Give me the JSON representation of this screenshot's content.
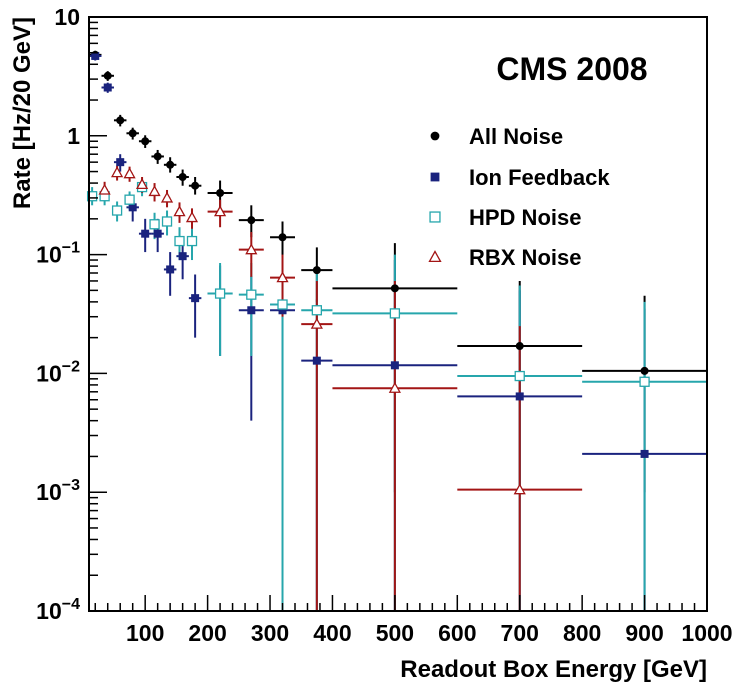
{
  "chart_data": {
    "type": "scatter",
    "title": "CMS 2008",
    "xlabel": "Readout Box Energy [GeV]",
    "ylabel": "Rate [Hz/20 GeV]",
    "xlim": [
      10,
      1000
    ],
    "ylim": [
      0.0001,
      10
    ],
    "yscale": "log",
    "grid": false,
    "legend_position": "top-right",
    "x_ticks": [
      100,
      200,
      300,
      400,
      500,
      600,
      700,
      800,
      900,
      1000
    ],
    "x_tick_labels": [
      "100",
      "200",
      "300",
      "400",
      "500",
      "600",
      "700",
      "800",
      "900",
      "1000"
    ],
    "y_ticks": [
      {
        "value": 10,
        "base": "10",
        "exp": ""
      },
      {
        "value": 1,
        "base": "1",
        "exp": ""
      },
      {
        "value": 0.1,
        "base": "10",
        "exp": "−1"
      },
      {
        "value": 0.01,
        "base": "10",
        "exp": "−2"
      },
      {
        "value": 0.001,
        "base": "10",
        "exp": "−3"
      },
      {
        "value": 0.0001,
        "base": "10",
        "exp": "−4"
      }
    ],
    "series": [
      {
        "name": "All Noise",
        "marker": "circle",
        "color": "#000000",
        "points": [
          {
            "x": 20,
            "y": 4.8,
            "xlo": 10,
            "xhi": 30,
            "ylo": 4.4,
            "yhi": 5.2
          },
          {
            "x": 40,
            "y": 3.2,
            "xlo": 30,
            "xhi": 50,
            "ylo": 2.9,
            "yhi": 3.5
          },
          {
            "x": 60,
            "y": 1.35,
            "xlo": 50,
            "xhi": 70,
            "ylo": 1.2,
            "yhi": 1.5
          },
          {
            "x": 80,
            "y": 1.05,
            "xlo": 70,
            "xhi": 90,
            "ylo": 0.93,
            "yhi": 1.17
          },
          {
            "x": 100,
            "y": 0.9,
            "xlo": 90,
            "xhi": 110,
            "ylo": 0.79,
            "yhi": 1.01
          },
          {
            "x": 120,
            "y": 0.67,
            "xlo": 110,
            "xhi": 130,
            "ylo": 0.58,
            "yhi": 0.76
          },
          {
            "x": 140,
            "y": 0.57,
            "xlo": 130,
            "xhi": 150,
            "ylo": 0.49,
            "yhi": 0.66
          },
          {
            "x": 160,
            "y": 0.45,
            "xlo": 150,
            "xhi": 170,
            "ylo": 0.38,
            "yhi": 0.52
          },
          {
            "x": 180,
            "y": 0.38,
            "xlo": 170,
            "xhi": 190,
            "ylo": 0.32,
            "yhi": 0.45
          },
          {
            "x": 220,
            "y": 0.33,
            "xlo": 200,
            "xhi": 240,
            "ylo": 0.25,
            "yhi": 0.42
          },
          {
            "x": 270,
            "y": 0.195,
            "xlo": 250,
            "xhi": 290,
            "ylo": 0.14,
            "yhi": 0.26
          },
          {
            "x": 320,
            "y": 0.14,
            "xlo": 300,
            "xhi": 340,
            "ylo": 0.095,
            "yhi": 0.19
          },
          {
            "x": 375,
            "y": 0.074,
            "xlo": 350,
            "xhi": 400,
            "ylo": 0.04,
            "yhi": 0.115
          },
          {
            "x": 500,
            "y": 0.052,
            "xlo": 400,
            "xhi": 600,
            "ylo": 0.001,
            "yhi": 0.125
          },
          {
            "x": 700,
            "y": 0.017,
            "xlo": 600,
            "xhi": 800,
            "ylo": 0.001,
            "yhi": 0.06
          },
          {
            "x": 900,
            "y": 0.0105,
            "xlo": 800,
            "xhi": 1000,
            "ylo": 0.001,
            "yhi": 0.045
          }
        ]
      },
      {
        "name": "Ion Feedback",
        "marker": "square",
        "color": "#1a237e",
        "points": [
          {
            "x": 20,
            "y": 4.7,
            "xlo": 10,
            "xhi": 30,
            "ylo": 4.3,
            "yhi": 5.1
          },
          {
            "x": 40,
            "y": 2.55,
            "xlo": 30,
            "xhi": 50,
            "ylo": 2.3,
            "yhi": 2.8
          },
          {
            "x": 60,
            "y": 0.6,
            "xlo": 50,
            "xhi": 70,
            "ylo": 0.5,
            "yhi": 0.7
          },
          {
            "x": 80,
            "y": 0.25,
            "xlo": 70,
            "xhi": 90,
            "ylo": 0.19,
            "yhi": 0.31
          },
          {
            "x": 100,
            "y": 0.15,
            "xlo": 90,
            "xhi": 110,
            "ylo": 0.105,
            "yhi": 0.2
          },
          {
            "x": 120,
            "y": 0.15,
            "xlo": 110,
            "xhi": 130,
            "ylo": 0.105,
            "yhi": 0.2
          },
          {
            "x": 140,
            "y": 0.075,
            "xlo": 130,
            "xhi": 150,
            "ylo": 0.045,
            "yhi": 0.105
          },
          {
            "x": 160,
            "y": 0.097,
            "xlo": 150,
            "xhi": 170,
            "ylo": 0.062,
            "yhi": 0.13
          },
          {
            "x": 180,
            "y": 0.043,
            "xlo": 170,
            "xhi": 190,
            "ylo": 0.02,
            "yhi": 0.068
          },
          {
            "x": 220,
            "y": 0.047,
            "xlo": 200,
            "xhi": 240,
            "ylo": 0.014,
            "yhi": 0.081
          },
          {
            "x": 270,
            "y": 0.034,
            "xlo": 250,
            "xhi": 290,
            "ylo": 0.004,
            "yhi": 0.066
          },
          {
            "x": 320,
            "y": 0.034,
            "xlo": 300,
            "xhi": 340,
            "ylo": 0.004,
            "yhi": 0.066
          },
          {
            "x": 375,
            "y": 0.0128,
            "xlo": 350,
            "xhi": 400,
            "ylo": 0.0001,
            "yhi": 0.042
          },
          {
            "x": 500,
            "y": 0.0117,
            "xlo": 400,
            "xhi": 600,
            "ylo": 0.0001,
            "yhi": 0.09
          },
          {
            "x": 700,
            "y": 0.0064,
            "xlo": 600,
            "xhi": 800,
            "ylo": 0.0001,
            "yhi": 0.05
          },
          {
            "x": 900,
            "y": 0.0021,
            "xlo": 800,
            "xhi": 1000,
            "ylo": 0.0001,
            "yhi": 0.035
          }
        ]
      },
      {
        "name": "HPD Noise",
        "marker": "open-square",
        "color": "#26a6ac",
        "points": [
          {
            "x": 15,
            "y": 0.31,
            "xlo": 10,
            "xhi": 20,
            "ylo": 0.26,
            "yhi": 0.37
          },
          {
            "x": 35,
            "y": 0.31,
            "xlo": 30,
            "xhi": 40,
            "ylo": 0.26,
            "yhi": 0.37
          },
          {
            "x": 55,
            "y": 0.235,
            "xlo": 50,
            "xhi": 60,
            "ylo": 0.19,
            "yhi": 0.28
          },
          {
            "x": 75,
            "y": 0.29,
            "xlo": 70,
            "xhi": 80,
            "ylo": 0.24,
            "yhi": 0.34
          },
          {
            "x": 95,
            "y": 0.37,
            "xlo": 90,
            "xhi": 100,
            "ylo": 0.31,
            "yhi": 0.43
          },
          {
            "x": 115,
            "y": 0.18,
            "xlo": 110,
            "xhi": 120,
            "ylo": 0.135,
            "yhi": 0.225
          },
          {
            "x": 135,
            "y": 0.19,
            "xlo": 130,
            "xhi": 140,
            "ylo": 0.145,
            "yhi": 0.235
          },
          {
            "x": 155,
            "y": 0.13,
            "xlo": 150,
            "xhi": 160,
            "ylo": 0.09,
            "yhi": 0.17
          },
          {
            "x": 175,
            "y": 0.13,
            "xlo": 170,
            "xhi": 180,
            "ylo": 0.09,
            "yhi": 0.17
          },
          {
            "x": 220,
            "y": 0.047,
            "xlo": 200,
            "xhi": 240,
            "ylo": 0.014,
            "yhi": 0.085
          },
          {
            "x": 270,
            "y": 0.046,
            "xlo": 250,
            "xhi": 290,
            "ylo": 0.014,
            "yhi": 0.085
          },
          {
            "x": 320,
            "y": 0.038,
            "xlo": 300,
            "xhi": 340,
            "ylo": 0.0001,
            "yhi": 0.07
          },
          {
            "x": 375,
            "y": 0.034,
            "xlo": 350,
            "xhi": 400,
            "ylo": 0.0001,
            "yhi": 0.075
          },
          {
            "x": 500,
            "y": 0.032,
            "xlo": 400,
            "xhi": 600,
            "ylo": 0.0001,
            "yhi": 0.1
          },
          {
            "x": 700,
            "y": 0.0095,
            "xlo": 600,
            "xhi": 800,
            "ylo": 0.0001,
            "yhi": 0.055
          },
          {
            "x": 900,
            "y": 0.0085,
            "xlo": 800,
            "xhi": 1000,
            "ylo": 0.0001,
            "yhi": 0.04
          }
        ]
      },
      {
        "name": "RBX Noise",
        "marker": "open-triangle",
        "color": "#a31515",
        "points": [
          {
            "x": 35,
            "y": 0.35,
            "xlo": 30,
            "xhi": 40,
            "ylo": 0.29,
            "yhi": 0.41
          },
          {
            "x": 55,
            "y": 0.49,
            "xlo": 50,
            "xhi": 60,
            "ylo": 0.42,
            "yhi": 0.56
          },
          {
            "x": 75,
            "y": 0.48,
            "xlo": 70,
            "xhi": 80,
            "ylo": 0.41,
            "yhi": 0.55
          },
          {
            "x": 95,
            "y": 0.39,
            "xlo": 90,
            "xhi": 100,
            "ylo": 0.33,
            "yhi": 0.45
          },
          {
            "x": 115,
            "y": 0.34,
            "xlo": 110,
            "xhi": 120,
            "ylo": 0.28,
            "yhi": 0.4
          },
          {
            "x": 135,
            "y": 0.3,
            "xlo": 130,
            "xhi": 140,
            "ylo": 0.25,
            "yhi": 0.35
          },
          {
            "x": 155,
            "y": 0.23,
            "xlo": 150,
            "xhi": 160,
            "ylo": 0.185,
            "yhi": 0.275
          },
          {
            "x": 175,
            "y": 0.205,
            "xlo": 170,
            "xhi": 180,
            "ylo": 0.165,
            "yhi": 0.245
          },
          {
            "x": 220,
            "y": 0.23,
            "xlo": 200,
            "xhi": 240,
            "ylo": 0.17,
            "yhi": 0.29
          },
          {
            "x": 270,
            "y": 0.11,
            "xlo": 250,
            "xhi": 290,
            "ylo": 0.065,
            "yhi": 0.155
          },
          {
            "x": 320,
            "y": 0.064,
            "xlo": 300,
            "xhi": 340,
            "ylo": 0.03,
            "yhi": 0.1
          },
          {
            "x": 375,
            "y": 0.026,
            "xlo": 350,
            "xhi": 400,
            "ylo": 0.0001,
            "yhi": 0.06
          },
          {
            "x": 500,
            "y": 0.0075,
            "xlo": 400,
            "xhi": 600,
            "ylo": 0.0001,
            "yhi": 0.06
          },
          {
            "x": 700,
            "y": 0.00105,
            "xlo": 600,
            "xhi": 800,
            "ylo": 0.0001,
            "yhi": 0.025
          }
        ]
      }
    ]
  }
}
